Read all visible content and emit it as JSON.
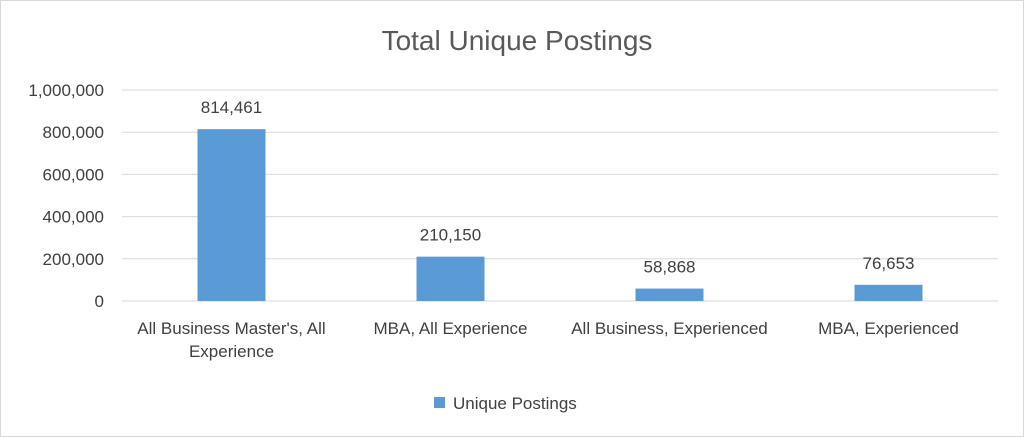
{
  "chart_data": {
    "type": "bar",
    "title": "Total Unique Postings",
    "categories": [
      [
        "All Business Master's, All",
        "Experience"
      ],
      [
        "MBA, All Experience"
      ],
      [
        "All Business, Experienced"
      ],
      [
        "MBA, Experienced"
      ]
    ],
    "series": [
      {
        "name": "Unique Postings",
        "values": [
          814461,
          210150,
          58868,
          76653
        ],
        "color": "#5b9bd5"
      }
    ],
    "data_labels": [
      "814,461",
      "210,150",
      "58,868",
      "76,653"
    ],
    "y_ticks": [
      "0",
      "200,000",
      "400,000",
      "600,000",
      "800,000",
      "1,000,000"
    ],
    "y_tick_values": [
      0,
      200000,
      400000,
      600000,
      800000,
      1000000
    ],
    "ylim": [
      0,
      1000000
    ],
    "grid": true,
    "legend_position": "bottom"
  }
}
